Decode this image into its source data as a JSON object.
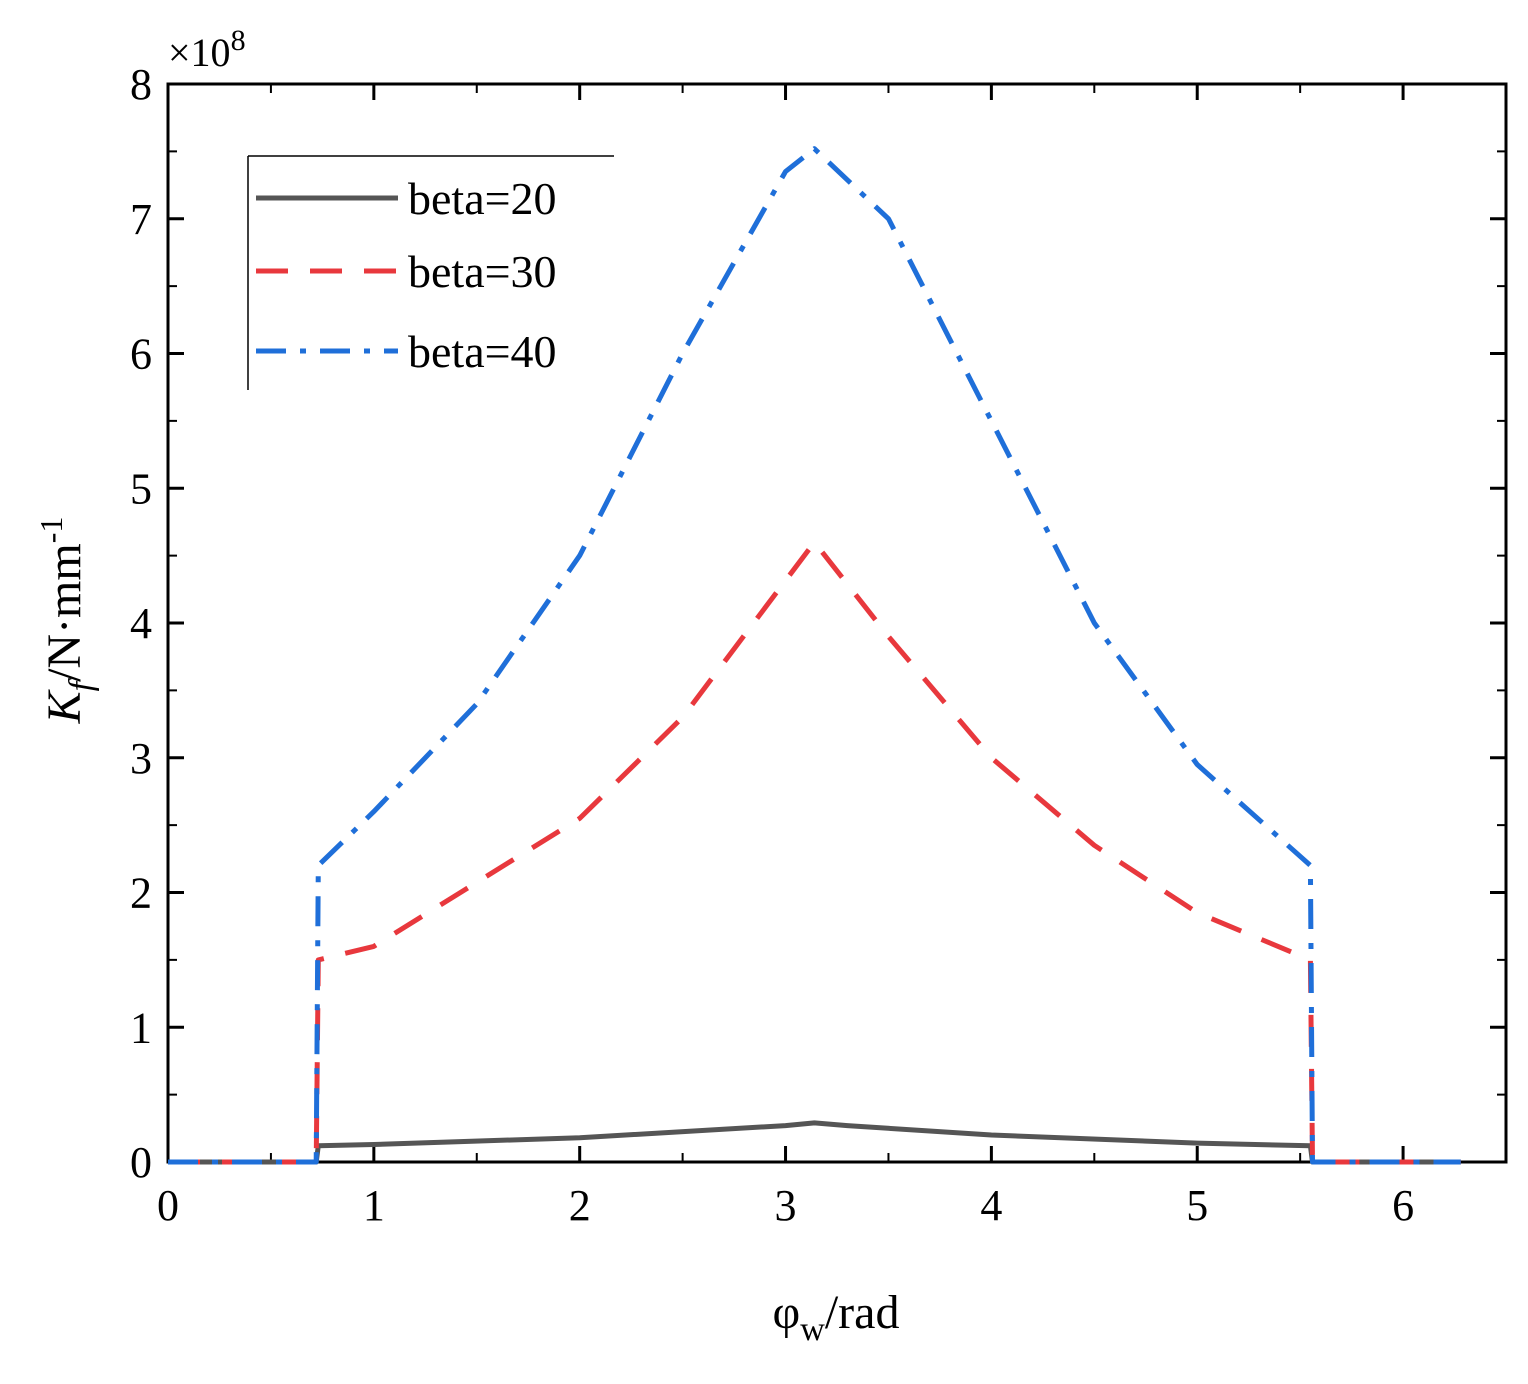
{
  "chart_data": {
    "type": "line",
    "xlabel_symbol": "φ",
    "xlabel_sub": "w",
    "xlabel_unit": "/rad",
    "ylabel_symbol": "K",
    "ylabel_sub": "f",
    "ylabel_unit": "/N·mm",
    "ylabel_exp": "-1",
    "y_multiplier_base": "×10",
    "y_multiplier_exp": "8",
    "xlim": [
      0,
      6.5
    ],
    "ylim": [
      0,
      8
    ],
    "x_ticks": [
      0,
      1,
      2,
      3,
      4,
      5,
      6
    ],
    "y_ticks": [
      0,
      1,
      2,
      3,
      4,
      5,
      6,
      7,
      8
    ],
    "grid": false,
    "legend_position": "top-left",
    "series": [
      {
        "name": "beta=20",
        "color": "#555555",
        "dash": "solid",
        "x": [
          0,
          0.72,
          0.73,
          1.0,
          2.0,
          3.0,
          3.14,
          3.3,
          4.0,
          5.0,
          5.55,
          5.56,
          6.28
        ],
        "y": [
          0,
          0,
          0.12,
          0.13,
          0.18,
          0.27,
          0.29,
          0.27,
          0.2,
          0.14,
          0.12,
          0,
          0
        ]
      },
      {
        "name": "beta=30",
        "color": "#e8383d",
        "dash": "dashed",
        "x": [
          0,
          0.72,
          0.73,
          1.0,
          2.0,
          2.5,
          3.14,
          3.5,
          4.0,
          4.5,
          5.0,
          5.55,
          5.56,
          6.28
        ],
        "y": [
          0,
          0,
          1.5,
          1.6,
          2.55,
          3.3,
          4.6,
          3.9,
          3.0,
          2.35,
          1.85,
          1.5,
          0,
          0
        ]
      },
      {
        "name": "beta=40",
        "color": "#1f6fd9",
        "dash": "dashdot",
        "x": [
          0,
          0.72,
          0.73,
          1.0,
          1.5,
          2.0,
          2.5,
          3.0,
          3.14,
          3.5,
          4.0,
          4.5,
          5.0,
          5.55,
          5.56,
          6.28
        ],
        "y": [
          0,
          0,
          2.2,
          2.6,
          3.4,
          4.5,
          6.0,
          7.35,
          7.52,
          7.0,
          5.5,
          4.0,
          2.95,
          2.2,
          0,
          0
        ]
      }
    ]
  }
}
